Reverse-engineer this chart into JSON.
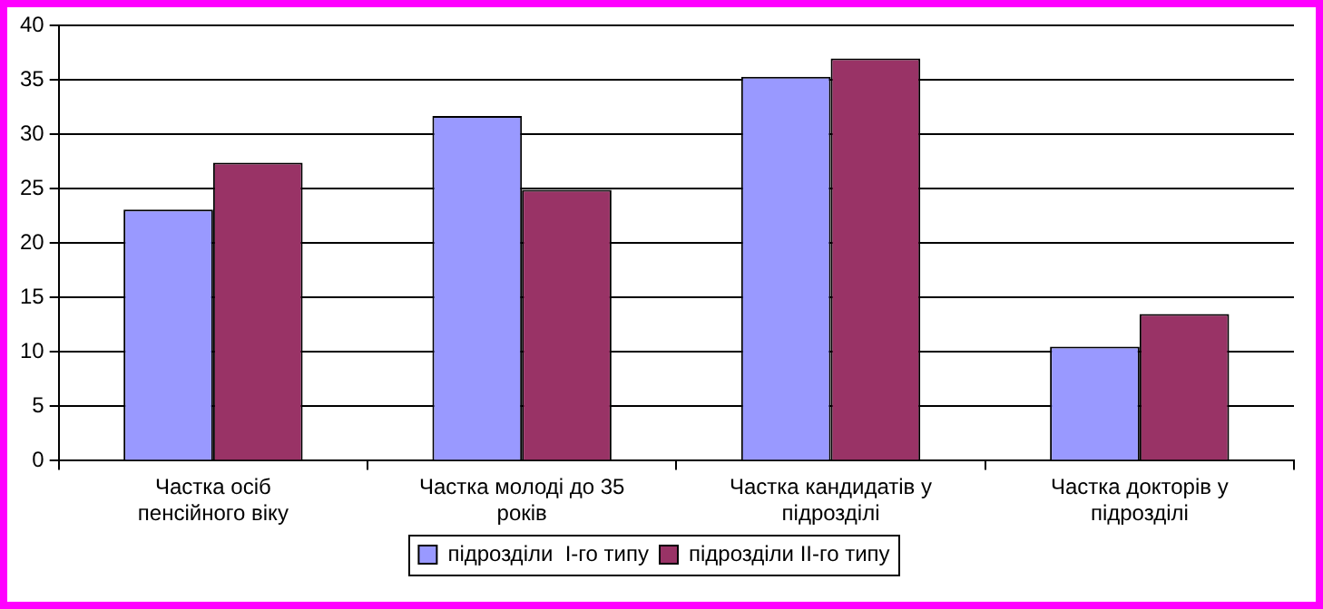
{
  "chart_data": {
    "type": "bar",
    "categories": [
      "Частка осіб пенсійного віку",
      "Частка молоді до 35 років",
      "Частка кандидатів у підрозділі",
      "Частка докторів у підрозділі"
    ],
    "series": [
      {
        "name": "підрозділи  І-го типу",
        "color": "#9999ff",
        "values": [
          23.1,
          31.7,
          35.3,
          10.5
        ]
      },
      {
        "name": "підрозділи ІІ-го типу",
        "color": "#993366",
        "values": [
          27.4,
          24.9,
          37.0,
          13.5
        ]
      }
    ],
    "ylim": [
      0,
      40
    ],
    "yticks": [
      0,
      5,
      10,
      15,
      20,
      25,
      30,
      35,
      40
    ],
    "grid": "y",
    "legend": "bottom"
  }
}
